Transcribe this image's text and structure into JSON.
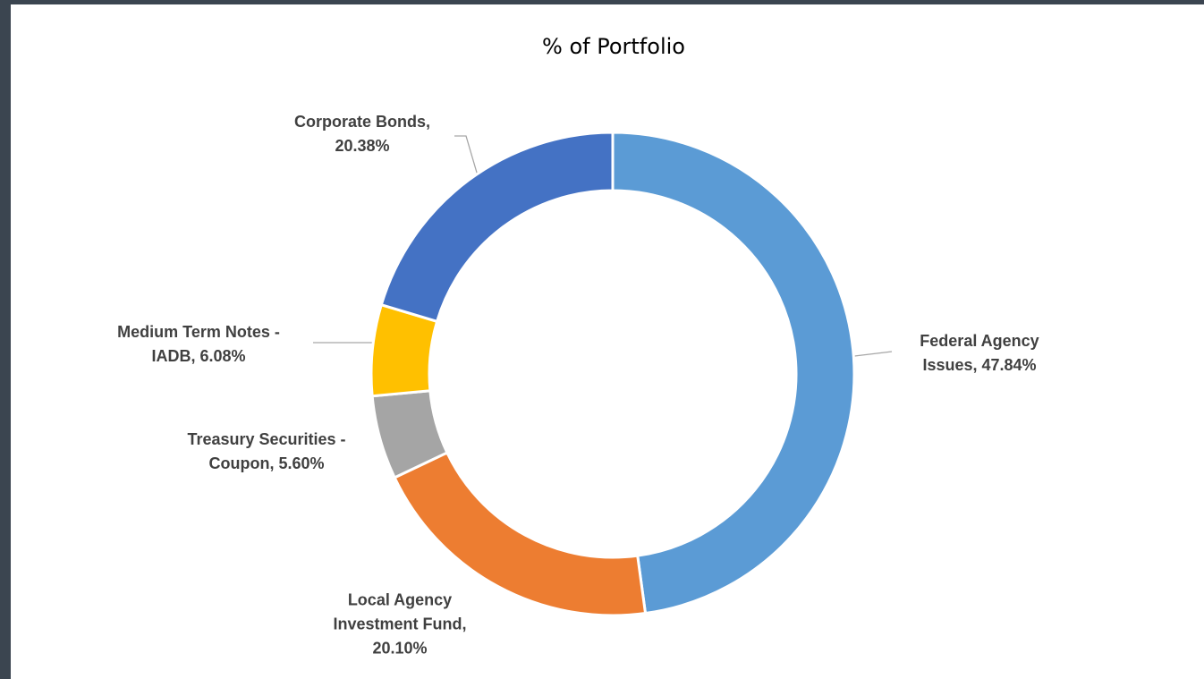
{
  "chart_data": {
    "type": "donut",
    "title": "% of Portfolio",
    "categories": [
      "Federal Agency Issues",
      "Local Agency Investment Fund",
      "Treasury Securities - Coupon",
      "Medium Term Notes - IADB",
      "Corporate Bonds"
    ],
    "values": [
      47.84,
      20.1,
      5.6,
      6.08,
      20.38
    ],
    "value_labels": [
      "47.84%",
      "20.10%",
      "5.60%",
      "6.08%",
      "20.38%"
    ],
    "label_separator": ", ",
    "colors": [
      "#5b9bd5",
      "#ed7d31",
      "#a5a5a5",
      "#ffc000",
      "#4472c4"
    ]
  }
}
